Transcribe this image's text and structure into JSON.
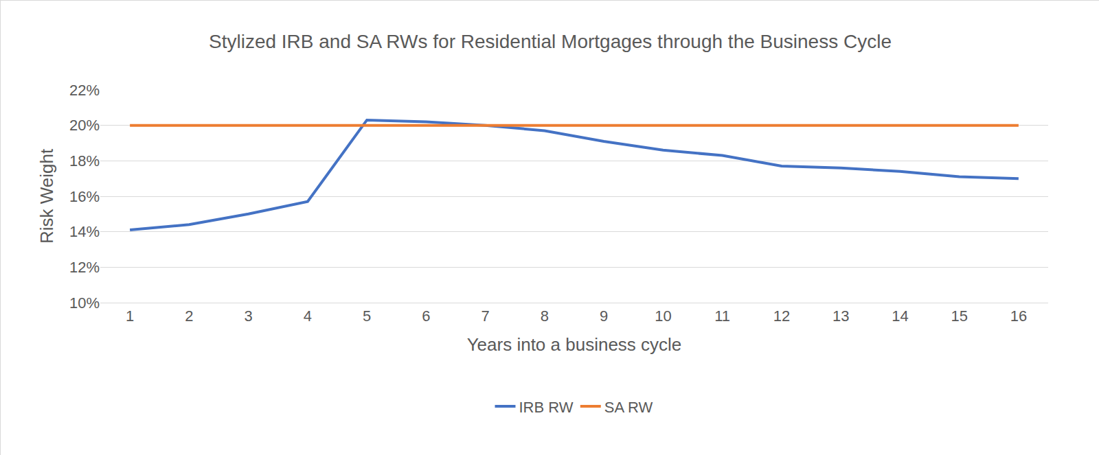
{
  "chart_data": {
    "type": "line",
    "title": "Stylized IRB and SA RWs for Residential Mortgages through the Business Cycle",
    "x_label": "Years into a business cycle",
    "y_label": "Risk Weight",
    "categories": [
      "1",
      "2",
      "3",
      "4",
      "5",
      "6",
      "7",
      "8",
      "9",
      "10",
      "11",
      "12",
      "13",
      "14",
      "15",
      "16"
    ],
    "series": [
      {
        "name": "IRB RW",
        "color": "#4472c4",
        "values": [
          14.1,
          14.4,
          15.0,
          15.7,
          20.3,
          20.2,
          20.0,
          19.7,
          19.1,
          18.6,
          18.3,
          17.7,
          17.6,
          17.4,
          17.1,
          17.0
        ]
      },
      {
        "name": "SA RW",
        "color": "#ed7d31",
        "values": [
          20,
          20,
          20,
          20,
          20,
          20,
          20,
          20,
          20,
          20,
          20,
          20,
          20,
          20,
          20,
          20
        ]
      }
    ],
    "ylim": [
      10,
      22
    ],
    "yticks": [
      {
        "value": 10,
        "label": "10%"
      },
      {
        "value": 12,
        "label": "12%"
      },
      {
        "value": 14,
        "label": "14%"
      },
      {
        "value": 16,
        "label": "16%"
      },
      {
        "value": 18,
        "label": "18%"
      },
      {
        "value": 20,
        "label": "20%"
      },
      {
        "value": 22,
        "label": "22%"
      }
    ],
    "grid": true,
    "legend": "bottom"
  }
}
